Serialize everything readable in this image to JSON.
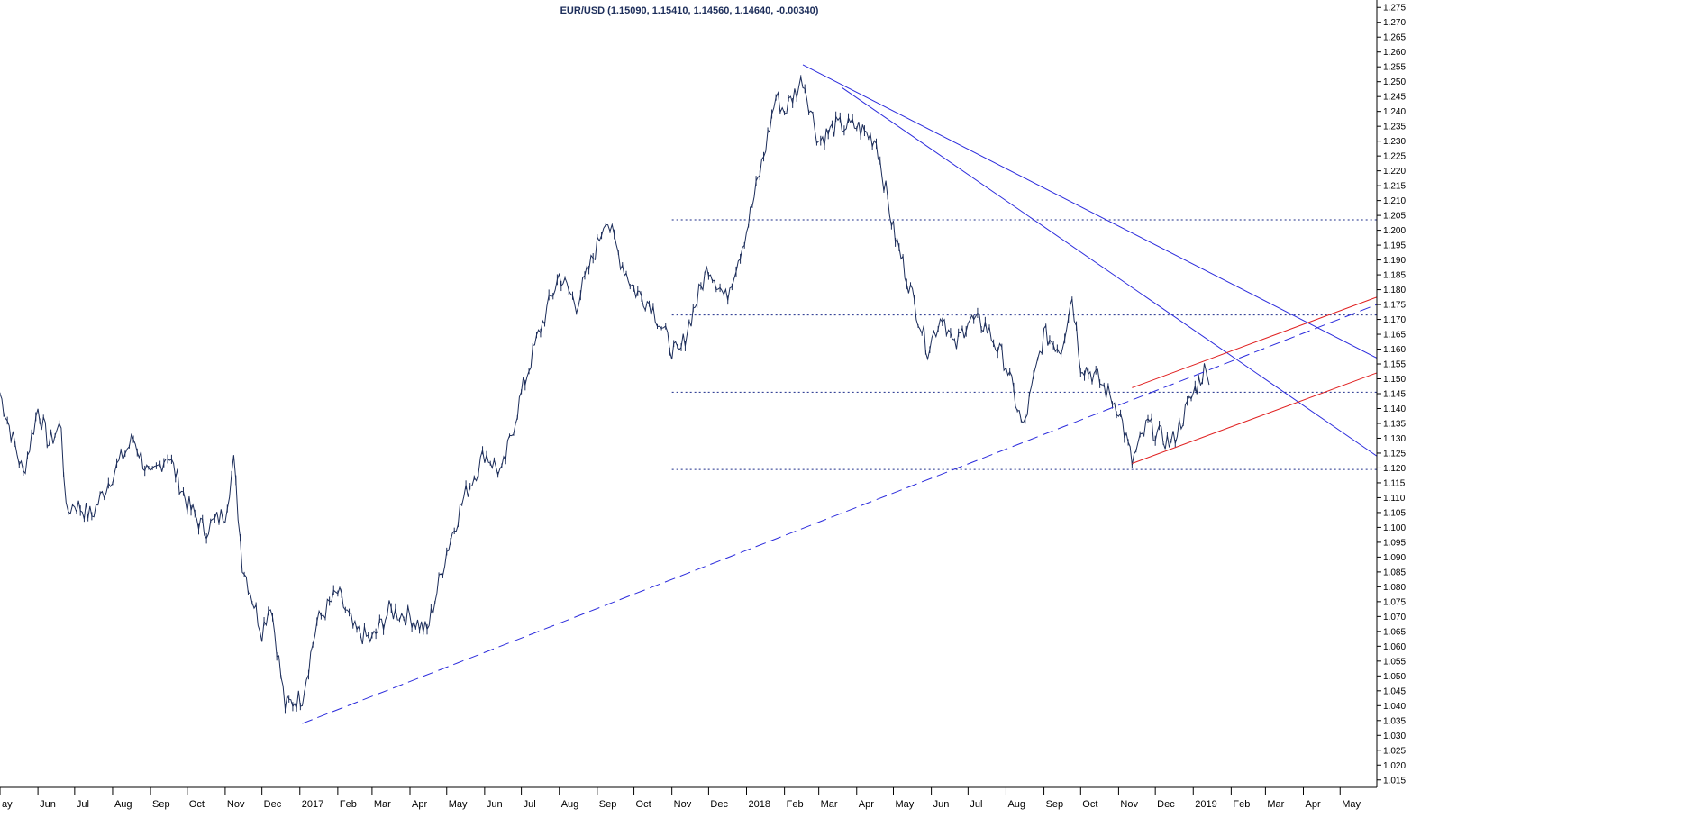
{
  "chart_data": {
    "type": "line",
    "title": "EUR/USD (1.15090, 1.15410, 1.14560, 1.14640, -0.00340)",
    "xlabel": "",
    "ylabel": "",
    "ylim": [
      1.0125,
      1.2775
    ],
    "xlim": [
      "2016-05-01",
      "2019-05-31"
    ],
    "grid": false,
    "y_ticks": [
      "1.015",
      "1.020",
      "1.025",
      "1.030",
      "1.035",
      "1.040",
      "1.045",
      "1.050",
      "1.055",
      "1.060",
      "1.065",
      "1.070",
      "1.075",
      "1.080",
      "1.085",
      "1.090",
      "1.095",
      "1.100",
      "1.105",
      "1.110",
      "1.115",
      "1.120",
      "1.125",
      "1.130",
      "1.135",
      "1.140",
      "1.145",
      "1.150",
      "1.155",
      "1.160",
      "1.165",
      "1.170",
      "1.175",
      "1.180",
      "1.185",
      "1.190",
      "1.195",
      "1.200",
      "1.205",
      "1.210",
      "1.215",
      "1.220",
      "1.225",
      "1.230",
      "1.235",
      "1.240",
      "1.245",
      "1.250",
      "1.255",
      "1.260",
      "1.265",
      "1.270",
      "1.275"
    ],
    "x_ticks": [
      {
        "label": "ay",
        "date": "2016-05-01"
      },
      {
        "label": "Jun",
        "date": "2016-06-01"
      },
      {
        "label": "Jul",
        "date": "2016-07-01"
      },
      {
        "label": "Aug",
        "date": "2016-08-01"
      },
      {
        "label": "Sep",
        "date": "2016-09-01"
      },
      {
        "label": "Oct",
        "date": "2016-10-01"
      },
      {
        "label": "Nov",
        "date": "2016-11-01"
      },
      {
        "label": "Dec",
        "date": "2016-12-01"
      },
      {
        "label": "2017",
        "date": "2017-01-01"
      },
      {
        "label": "Feb",
        "date": "2017-02-01"
      },
      {
        "label": "Mar",
        "date": "2017-03-01"
      },
      {
        "label": "Apr",
        "date": "2017-04-01"
      },
      {
        "label": "May",
        "date": "2017-05-01"
      },
      {
        "label": "Jun",
        "date": "2017-06-01"
      },
      {
        "label": "Jul",
        "date": "2017-07-01"
      },
      {
        "label": "Aug",
        "date": "2017-08-01"
      },
      {
        "label": "Sep",
        "date": "2017-09-01"
      },
      {
        "label": "Oct",
        "date": "2017-10-01"
      },
      {
        "label": "Nov",
        "date": "2017-11-01"
      },
      {
        "label": "Dec",
        "date": "2017-12-01"
      },
      {
        "label": "2018",
        "date": "2018-01-01"
      },
      {
        "label": "Feb",
        "date": "2018-02-01"
      },
      {
        "label": "Mar",
        "date": "2018-03-01"
      },
      {
        "label": "Apr",
        "date": "2018-04-01"
      },
      {
        "label": "May",
        "date": "2018-05-01"
      },
      {
        "label": "Jun",
        "date": "2018-06-01"
      },
      {
        "label": "Jul",
        "date": "2018-07-01"
      },
      {
        "label": "Aug",
        "date": "2018-08-01"
      },
      {
        "label": "Sep",
        "date": "2018-09-01"
      },
      {
        "label": "Oct",
        "date": "2018-10-01"
      },
      {
        "label": "Nov",
        "date": "2018-11-01"
      },
      {
        "label": "Dec",
        "date": "2018-12-01"
      },
      {
        "label": "2019",
        "date": "2019-01-01"
      },
      {
        "label": "Feb",
        "date": "2019-02-01"
      },
      {
        "label": "Mar",
        "date": "2019-03-01"
      },
      {
        "label": "Apr",
        "date": "2019-04-01"
      },
      {
        "label": "May",
        "date": "2019-05-01"
      }
    ],
    "series": [
      {
        "x": [
          "2016-05-01",
          "2016-05-10",
          "2016-05-20",
          "2016-06-01",
          "2016-06-10",
          "2016-06-20",
          "2016-06-24",
          "2016-07-01",
          "2016-07-15",
          "2016-08-01",
          "2016-08-18",
          "2016-09-01",
          "2016-09-15",
          "2016-10-01",
          "2016-10-15",
          "2016-11-01",
          "2016-11-08",
          "2016-11-15",
          "2016-12-01",
          "2016-12-08",
          "2016-12-20",
          "2017-01-03",
          "2017-01-15",
          "2017-02-01",
          "2017-02-15",
          "2017-03-01",
          "2017-03-15",
          "2017-04-01",
          "2017-04-15",
          "2017-05-01",
          "2017-05-15",
          "2017-06-01",
          "2017-06-15",
          "2017-07-01",
          "2017-07-15",
          "2017-08-01",
          "2017-08-15",
          "2017-09-01",
          "2017-09-08",
          "2017-09-20",
          "2017-10-01",
          "2017-10-15",
          "2017-11-01",
          "2017-11-07",
          "2017-11-20",
          "2017-12-01",
          "2017-12-15",
          "2018-01-01",
          "2018-01-15",
          "2018-01-25",
          "2018-02-01",
          "2018-02-16",
          "2018-03-01",
          "2018-03-15",
          "2018-04-01",
          "2018-04-17",
          "2018-05-01",
          "2018-05-15",
          "2018-05-29",
          "2018-06-10",
          "2018-06-20",
          "2018-07-01",
          "2018-07-15",
          "2018-08-01",
          "2018-08-15",
          "2018-09-01",
          "2018-09-15",
          "2018-09-24",
          "2018-10-01",
          "2018-10-15",
          "2018-11-01",
          "2018-11-12",
          "2018-11-25",
          "2018-12-01",
          "2018-12-14",
          "2019-01-01",
          "2019-01-10",
          "2019-01-14"
        ],
        "values": [
          1.145,
          1.132,
          1.118,
          1.14,
          1.128,
          1.135,
          1.105,
          1.108,
          1.104,
          1.118,
          1.13,
          1.116,
          1.125,
          1.108,
          1.099,
          1.105,
          1.122,
          1.088,
          1.065,
          1.075,
          1.04,
          1.043,
          1.068,
          1.078,
          1.065,
          1.062,
          1.072,
          1.07,
          1.065,
          1.092,
          1.11,
          1.125,
          1.118,
          1.145,
          1.165,
          1.185,
          1.175,
          1.195,
          1.205,
          1.19,
          1.18,
          1.175,
          1.16,
          1.158,
          1.175,
          1.188,
          1.177,
          1.2,
          1.225,
          1.245,
          1.24,
          1.251,
          1.23,
          1.235,
          1.235,
          1.23,
          1.2,
          1.18,
          1.16,
          1.172,
          1.16,
          1.17,
          1.168,
          1.155,
          1.133,
          1.165,
          1.16,
          1.178,
          1.155,
          1.15,
          1.14,
          1.122,
          1.135,
          1.132,
          1.128,
          1.145,
          1.153,
          1.148
        ]
      }
    ],
    "trendlines": [
      {
        "style": "solid",
        "color": "#2b2bdc",
        "from": [
          "2018-02-16",
          1.2557
        ],
        "to": [
          "2019-05-31",
          1.157
        ]
      },
      {
        "style": "solid",
        "color": "#2b2bdc",
        "from": [
          "2018-03-20",
          1.248
        ],
        "to": [
          "2019-05-31",
          1.124
        ]
      },
      {
        "style": "dashed",
        "color": "#2b2bdc",
        "from": [
          "2017-01-03",
          1.034
        ],
        "to": [
          "2019-05-31",
          1.175
        ]
      },
      {
        "style": "solid",
        "color": "#e02020",
        "from": [
          "2018-11-12",
          1.147
        ],
        "to": [
          "2019-05-31",
          1.1775
        ]
      },
      {
        "style": "solid",
        "color": "#e02020",
        "from": [
          "2018-11-12",
          1.1215
        ],
        "to": [
          "2019-05-31",
          1.152
        ]
      }
    ],
    "horizontal_levels": [
      {
        "y": 1.2035,
        "from": "2017-11-01"
      },
      {
        "y": 1.1715,
        "from": "2017-11-01"
      },
      {
        "y": 1.1455,
        "from": "2017-11-01"
      },
      {
        "y": 1.1195,
        "from": "2017-11-01"
      }
    ],
    "colors": {
      "price": "#1c2d5a",
      "trend": "#2b2bdc",
      "channel": "#e02020",
      "level": "#1c2d8a",
      "axis": "#000000"
    }
  }
}
